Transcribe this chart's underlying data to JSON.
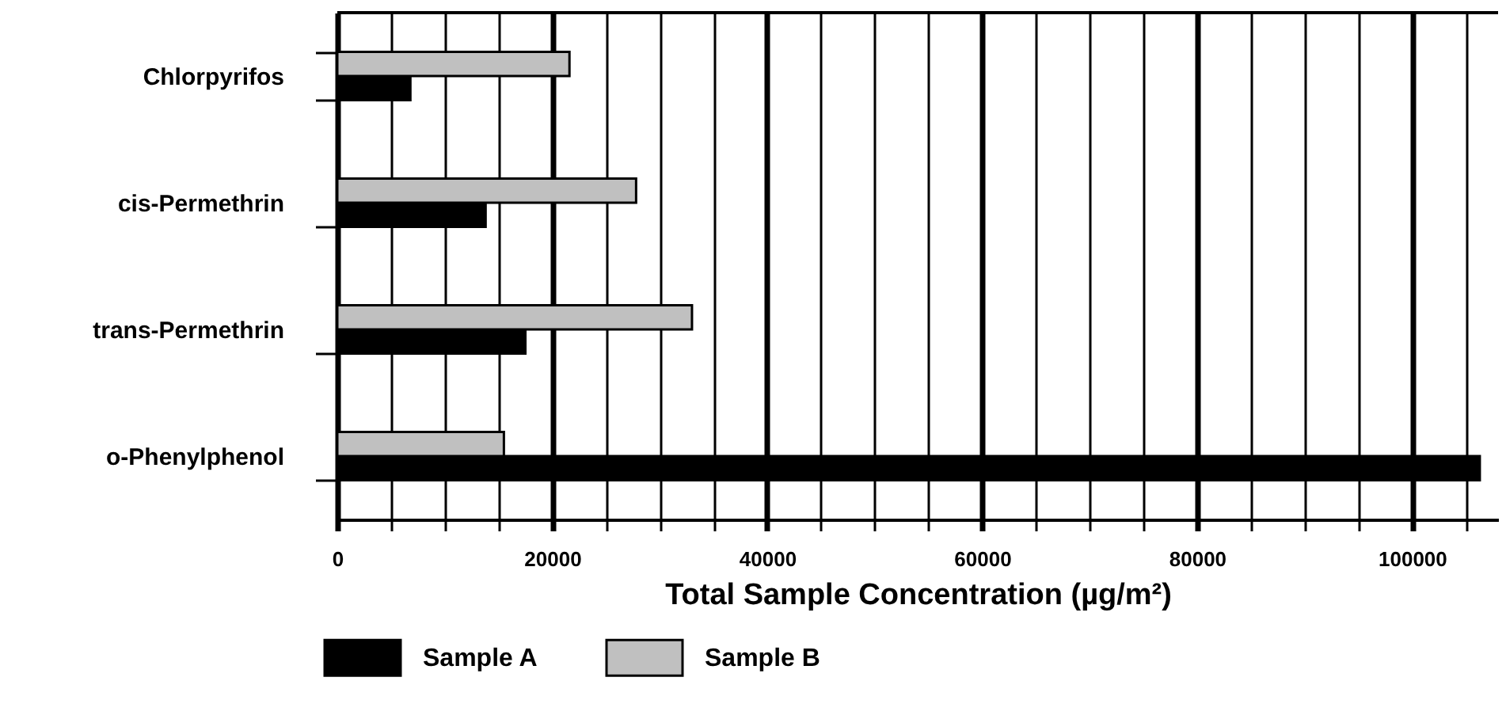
{
  "chart_data": {
    "type": "bar",
    "orientation": "horizontal",
    "categories": [
      "Chlorpyrifos",
      "cis-Permethrin",
      "trans-Permethrin",
      "o-Phenylphenol"
    ],
    "series": [
      {
        "name": "Sample A",
        "color": "#000000",
        "values": [
          6800,
          13800,
          17500,
          106300
        ]
      },
      {
        "name": "Sample B",
        "color": "#c0c0c0",
        "values": [
          21600,
          27800,
          33000,
          15500
        ]
      }
    ],
    "xlabel": "Total Sample Concentration (µg/m²)",
    "xlim": [
      0,
      108000
    ],
    "xticks": [
      0,
      {
        "value": 5000,
        "label": null
      },
      {
        "value": 10000,
        "label": null
      },
      {
        "value": 15000,
        "label": null
      },
      20000,
      {
        "value": 25000,
        "label": null
      },
      {
        "value": 30000,
        "label": null
      },
      {
        "value": 35000,
        "label": null
      },
      40000,
      {
        "value": 45000,
        "label": null
      },
      {
        "value": 50000,
        "label": null
      },
      {
        "value": 55000,
        "label": null
      },
      60000,
      {
        "value": 65000,
        "label": null
      },
      {
        "value": 70000,
        "label": null
      },
      {
        "value": 75000,
        "label": null
      },
      80000,
      {
        "value": 85000,
        "label": null
      },
      {
        "value": 90000,
        "label": null
      },
      {
        "value": 95000,
        "label": null
      },
      100000,
      {
        "value": 105000,
        "label": null
      }
    ],
    "grid": "x",
    "legend": "bottom"
  }
}
